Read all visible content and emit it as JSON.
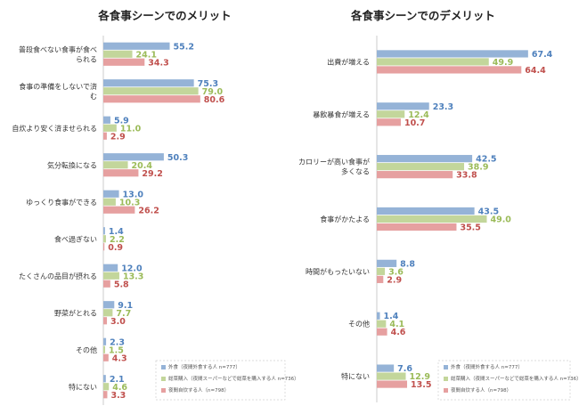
{
  "chart_data": [
    {
      "type": "bar",
      "orientation": "horizontal",
      "title": "各食事シーンでのメリット",
      "categories": [
        [
          "普段食べない食事が食べ",
          "られる"
        ],
        [
          "食事の準備をしないで済",
          "む"
        ],
        [
          "自炊より安く済ませられる"
        ],
        [
          "気分転換になる"
        ],
        [
          "ゆっくり食事ができる"
        ],
        [
          "食べ過ぎない"
        ],
        [
          "たくさんの品目が摂れる"
        ],
        [
          "野菜がとれる"
        ],
        [
          "その他"
        ],
        [
          "特にない"
        ]
      ],
      "xlim": [
        0,
        100
      ],
      "series": [
        {
          "name": "外食（夜間外食する人 n=777）",
          "color": "#95B3D7",
          "text_color": "#4F81BD",
          "values": [
            55.2,
            75.3,
            5.9,
            50.3,
            13.0,
            1.4,
            12.0,
            9.1,
            2.3,
            2.1
          ]
        },
        {
          "name": "総菜購入（夜間スーパーなどで総菜を購入する人 n=736）",
          "color": "#C3D69B",
          "text_color": "#9BBB59",
          "values": [
            24.1,
            79.0,
            11.0,
            20.4,
            10.3,
            2.2,
            13.3,
            7.7,
            1.5,
            4.6
          ]
        },
        {
          "name": "夜間自炊する人（n=798）",
          "color": "#E6A0A0",
          "text_color": "#C0504D",
          "values": [
            34.3,
            80.6,
            2.9,
            29.2,
            26.2,
            0.9,
            5.8,
            3.0,
            4.3,
            3.3
          ]
        }
      ]
    },
    {
      "type": "bar",
      "orientation": "horizontal",
      "title": "各食事シーンでのデメリット",
      "categories": [
        [
          "出費が増える"
        ],
        [
          "暴飲暴食が増える"
        ],
        [
          "カロリーが高い食事が",
          "多くなる"
        ],
        [
          "食事がかたよる"
        ],
        [
          "時間がもったいない"
        ],
        [
          "その他"
        ],
        [
          "特にない"
        ]
      ],
      "xlim": [
        0,
        100
      ],
      "series": [
        {
          "name": "外食（夜間外食する人 n=777）",
          "color": "#95B3D7",
          "text_color": "#4F81BD",
          "values": [
            67.4,
            23.3,
            42.5,
            43.5,
            8.8,
            1.4,
            7.6
          ]
        },
        {
          "name": "総菜購入（夜間スーパーなどで総菜を購入する人 n=736）",
          "color": "#C3D69B",
          "text_color": "#9BBB59",
          "values": [
            49.9,
            12.4,
            38.9,
            49.0,
            3.6,
            4.1,
            12.9
          ]
        },
        {
          "name": "夜間自炊する人（n=798）",
          "color": "#E6A0A0",
          "text_color": "#C0504D",
          "values": [
            64.4,
            10.7,
            33.8,
            35.5,
            2.9,
            4.6,
            13.5
          ]
        }
      ]
    }
  ]
}
